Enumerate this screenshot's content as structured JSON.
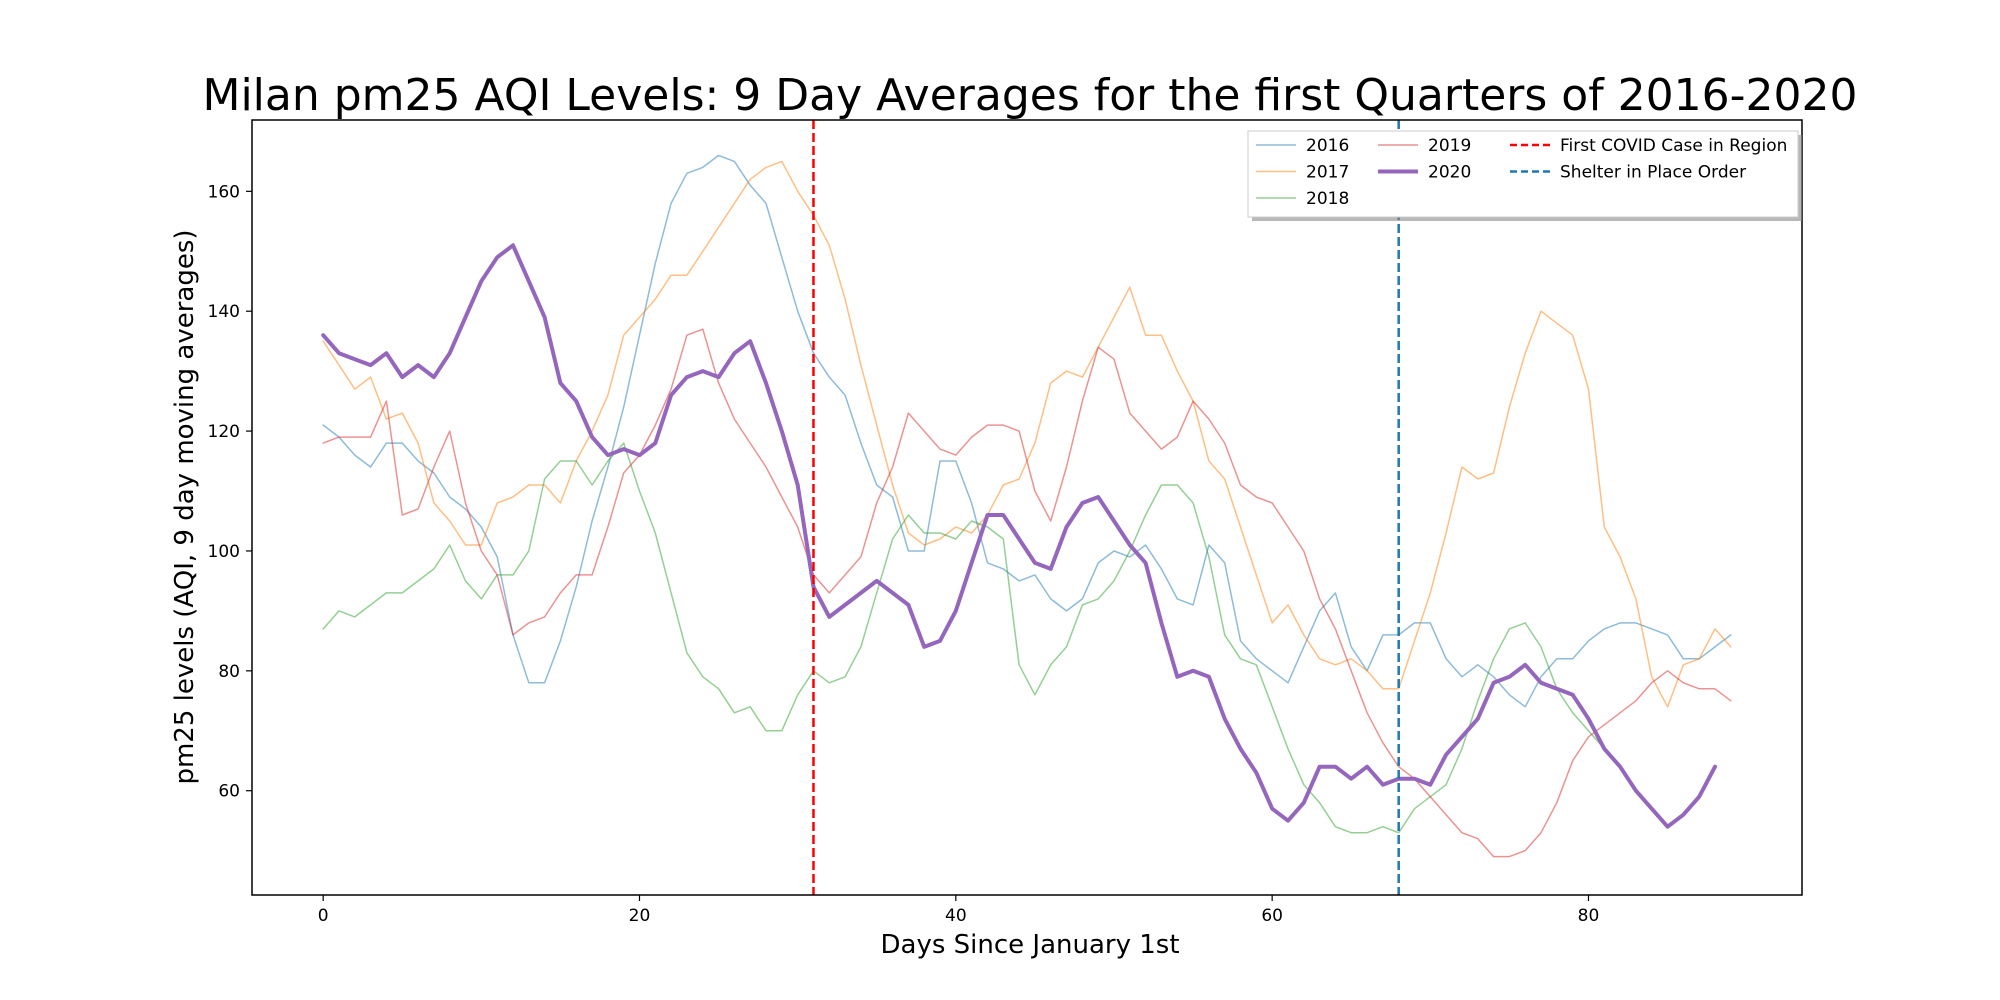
{
  "chart_data": {
    "type": "line",
    "title": "Milan pm25 AQI Levels: 9 Day Averages for the first Quarters of 2016-2020",
    "xlabel": "Days Since January 1st",
    "ylabel": "pm25 levels (AQI, 9 day moving averages)",
    "xlim": [
      -4.5,
      93.5
    ],
    "ylim": [
      42.6,
      171.9
    ],
    "xticks": [
      0,
      20,
      40,
      60,
      80
    ],
    "yticks": [
      60,
      80,
      100,
      120,
      140,
      160
    ],
    "grid": false,
    "legend_position": "top-right",
    "series": [
      {
        "name": "2016",
        "color": "#1f77b4",
        "opacity": 0.5,
        "width": 1.5,
        "x": [
          0,
          1,
          2,
          3,
          4,
          5,
          6,
          7,
          8,
          9,
          10,
          11,
          12,
          13,
          14,
          15,
          16,
          17,
          18,
          19,
          20,
          21,
          22,
          23,
          24,
          25,
          26,
          27,
          28,
          29,
          30,
          31,
          32,
          33,
          34,
          35,
          36,
          37,
          38,
          39,
          40,
          41,
          42,
          43,
          44,
          45,
          46,
          47,
          48,
          49,
          50,
          51,
          52,
          53,
          54,
          55,
          56,
          57,
          58,
          59,
          60,
          61,
          62,
          63,
          64,
          65,
          66,
          67,
          68,
          69,
          70,
          71,
          72,
          73,
          74,
          75,
          76,
          77,
          78,
          79,
          80,
          81,
          82,
          83,
          84,
          85,
          86,
          87,
          88,
          89
        ],
        "values": [
          121,
          119,
          116,
          114,
          118,
          118,
          115,
          113,
          109,
          107,
          104,
          99,
          86,
          78,
          78,
          85,
          94,
          105,
          114,
          124,
          136,
          148,
          158,
          163,
          164,
          166,
          165,
          161,
          158,
          149,
          140,
          133,
          129,
          126,
          118,
          111,
          109,
          100,
          100,
          115,
          115,
          108,
          98,
          97,
          95,
          96,
          92,
          90,
          92,
          98,
          100,
          99,
          101,
          97,
          92,
          91,
          101,
          98,
          85,
          82,
          80,
          78,
          84,
          90,
          93,
          84,
          80,
          86,
          86,
          88,
          88,
          82,
          79,
          81,
          79,
          76,
          74,
          79,
          82,
          82,
          85,
          87,
          88,
          88,
          87,
          86,
          82,
          82,
          84,
          86
        ]
      },
      {
        "name": "2017",
        "color": "#ff7f0e",
        "opacity": 0.5,
        "width": 1.5,
        "x": [
          0,
          1,
          2,
          3,
          4,
          5,
          6,
          7,
          8,
          9,
          10,
          11,
          12,
          13,
          14,
          15,
          16,
          17,
          18,
          19,
          20,
          21,
          22,
          23,
          24,
          25,
          26,
          27,
          28,
          29,
          30,
          31,
          32,
          33,
          34,
          35,
          36,
          37,
          38,
          39,
          40,
          41,
          42,
          43,
          44,
          45,
          46,
          47,
          48,
          49,
          50,
          51,
          52,
          53,
          54,
          55,
          56,
          57,
          58,
          59,
          60,
          61,
          62,
          63,
          64,
          65,
          66,
          67,
          68,
          69,
          70,
          71,
          72,
          73,
          74,
          75,
          76,
          77,
          78,
          79,
          80,
          81,
          82,
          83,
          84,
          85,
          86,
          87,
          88,
          89
        ],
        "values": [
          135,
          131,
          127,
          129,
          122,
          123,
          118,
          108,
          105,
          101,
          101,
          108,
          109,
          111,
          111,
          108,
          115,
          120,
          126,
          136,
          139,
          142,
          146,
          146,
          150,
          154,
          158,
          162,
          164,
          165,
          160,
          156,
          151,
          142,
          131,
          121,
          111,
          103,
          101,
          102,
          104,
          103,
          106,
          111,
          112,
          118,
          128,
          130,
          129,
          134,
          139,
          144,
          136,
          136,
          130,
          125,
          115,
          112,
          104,
          96,
          88,
          91,
          86,
          82,
          81,
          82,
          80,
          77,
          77,
          85,
          93,
          103,
          114,
          112,
          113,
          124,
          133,
          140,
          138,
          136,
          127,
          104,
          99,
          92,
          79,
          74,
          81,
          82,
          87,
          84
        ]
      },
      {
        "name": "2018",
        "color": "#2ca02c",
        "opacity": 0.5,
        "width": 1.5,
        "x": [
          0,
          1,
          2,
          3,
          4,
          5,
          6,
          7,
          8,
          9,
          10,
          11,
          12,
          13,
          14,
          15,
          16,
          17,
          18,
          19,
          20,
          21,
          22,
          23,
          24,
          25,
          26,
          27,
          28,
          29,
          30,
          31,
          32,
          33,
          34,
          35,
          36,
          37,
          38,
          39,
          40,
          41,
          42,
          43,
          44,
          45,
          46,
          47,
          48,
          49,
          50,
          51,
          52,
          53,
          54,
          55,
          56,
          57,
          58,
          59,
          60,
          61,
          62,
          63,
          64,
          65,
          66,
          67,
          68,
          69,
          70,
          71,
          72,
          73,
          74,
          75,
          76,
          77,
          78,
          79,
          80,
          81
        ],
        "values": [
          87,
          90,
          89,
          91,
          93,
          93,
          95,
          97,
          101,
          95,
          92,
          96,
          96,
          100,
          112,
          115,
          115,
          111,
          115,
          118,
          110,
          103,
          93,
          83,
          79,
          77,
          73,
          74,
          70,
          70,
          76,
          80,
          78,
          79,
          84,
          93,
          102,
          106,
          103,
          103,
          102,
          105,
          104,
          102,
          81,
          76,
          81,
          84,
          91,
          92,
          95,
          100,
          106,
          111,
          111,
          108,
          99,
          86,
          82,
          81,
          74,
          67,
          61,
          58,
          54,
          53,
          53,
          54,
          53,
          57,
          59,
          61,
          67,
          75,
          82,
          87,
          88,
          84,
          77,
          73,
          70,
          67
        ]
      },
      {
        "name": "2019",
        "color": "#d62728",
        "opacity": 0.5,
        "width": 1.5,
        "x": [
          0,
          1,
          2,
          3,
          4,
          5,
          6,
          7,
          8,
          9,
          10,
          11,
          12,
          13,
          14,
          15,
          16,
          17,
          18,
          19,
          20,
          21,
          22,
          23,
          24,
          25,
          26,
          27,
          28,
          29,
          30,
          31,
          32,
          33,
          34,
          35,
          36,
          37,
          38,
          39,
          40,
          41,
          42,
          43,
          44,
          45,
          46,
          47,
          48,
          49,
          50,
          51,
          52,
          53,
          54,
          55,
          56,
          57,
          58,
          59,
          60,
          61,
          62,
          63,
          64,
          65,
          66,
          67,
          68,
          69,
          70,
          71,
          72,
          73,
          74,
          75,
          76,
          77,
          78,
          79,
          80,
          81,
          82,
          83,
          84,
          85,
          86,
          87,
          88,
          89
        ],
        "values": [
          118,
          119,
          119,
          119,
          125,
          106,
          107,
          114,
          120,
          108,
          100,
          96,
          86,
          88,
          89,
          93,
          96,
          96,
          104,
          113,
          116,
          121,
          127,
          136,
          137,
          128,
          122,
          118,
          114,
          109,
          104,
          96,
          93,
          96,
          99,
          108,
          114,
          123,
          120,
          117,
          116,
          119,
          121,
          121,
          120,
          110,
          105,
          114,
          125,
          134,
          132,
          123,
          120,
          117,
          119,
          125,
          122,
          118,
          111,
          109,
          108,
          104,
          100,
          92,
          87,
          80,
          73,
          68,
          64,
          62,
          59,
          56,
          53,
          52,
          49,
          49,
          50,
          53,
          58,
          65,
          69,
          71,
          73,
          75,
          78,
          80,
          78,
          77,
          77,
          75
        ]
      },
      {
        "name": "2020",
        "color": "#9467bd",
        "opacity": 1,
        "width": 4,
        "x": [
          0,
          1,
          2,
          3,
          4,
          5,
          6,
          7,
          8,
          9,
          10,
          11,
          12,
          13,
          14,
          15,
          16,
          17,
          18,
          19,
          20,
          21,
          22,
          23,
          24,
          25,
          26,
          27,
          28,
          29,
          30,
          31,
          32,
          33,
          34,
          35,
          36,
          37,
          38,
          39,
          40,
          41,
          42,
          43,
          44,
          45,
          46,
          47,
          48,
          49,
          50,
          51,
          52,
          53,
          54,
          55,
          56,
          57,
          58,
          59,
          60,
          61,
          62,
          63,
          64,
          65,
          66,
          67,
          68,
          69,
          70,
          71,
          72,
          73,
          74,
          75,
          76,
          77,
          78,
          79,
          80,
          81,
          82,
          83,
          84,
          85,
          86,
          87,
          88
        ],
        "values": [
          136,
          133,
          132,
          131,
          133,
          129,
          131,
          129,
          133,
          139,
          145,
          149,
          151,
          145,
          139,
          128,
          125,
          119,
          116,
          117,
          116,
          118,
          126,
          129,
          130,
          129,
          133,
          135,
          128,
          120,
          111,
          94,
          89,
          91,
          93,
          95,
          93,
          91,
          84,
          85,
          90,
          98,
          106,
          106,
          102,
          98,
          97,
          104,
          108,
          109,
          105,
          101,
          98,
          88,
          79,
          80,
          79,
          72,
          67,
          63,
          57,
          55,
          58,
          64,
          64,
          62,
          64,
          61,
          62,
          62,
          61,
          66,
          69,
          72,
          78,
          79,
          81,
          78,
          77,
          76,
          72,
          67,
          64,
          60,
          57,
          54,
          56,
          59,
          64
        ]
      }
    ],
    "vlines": [
      {
        "name": "First COVID Case in Region",
        "x": 31,
        "color": "#ff0000"
      },
      {
        "name": "Shelter in Place Order",
        "x": 68,
        "color": "#1f77b4"
      }
    ]
  }
}
